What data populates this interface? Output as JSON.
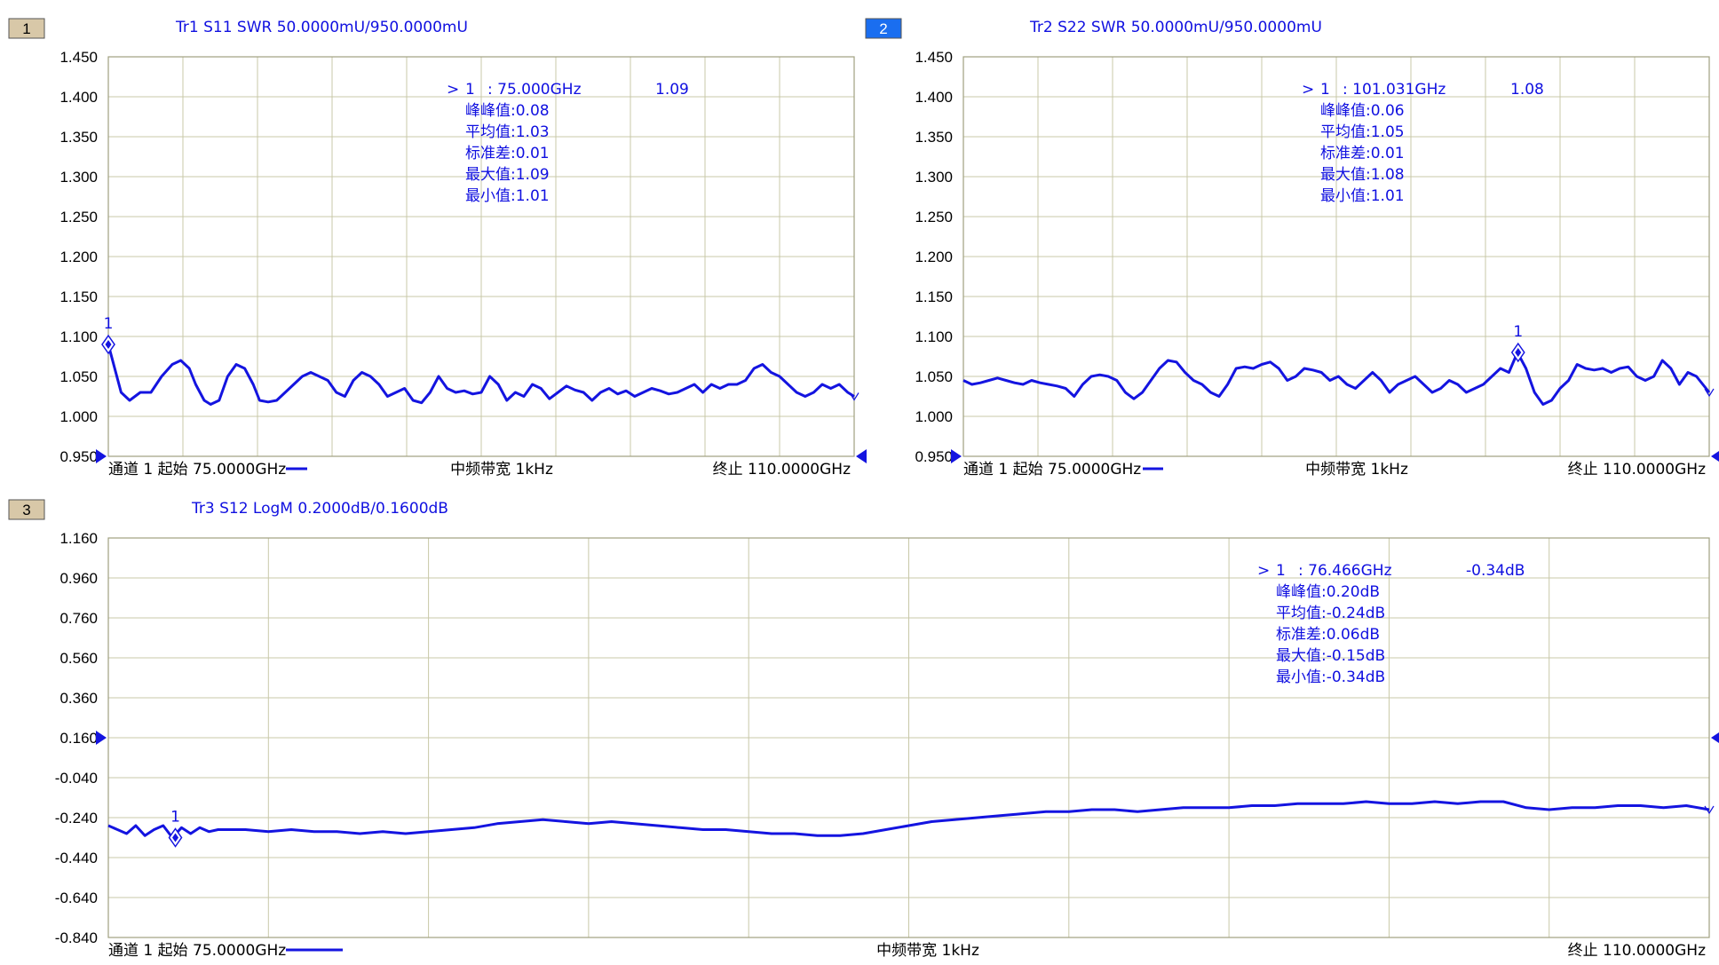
{
  "colors": {
    "trace": "#1414e0",
    "grid": "#c8c8a8",
    "frame": "#a0a080",
    "badge_inactive": "#d8c8a8",
    "badge_active": "#1a6ef0",
    "annotation": "#1010e0"
  },
  "chart_data": [
    {
      "type": "line",
      "badge": "1",
      "badge_active": false,
      "title": "Tr1 S11 SWR 50.0000mU/950.0000mU",
      "x_range": [
        75.0,
        110.0
      ],
      "x_unit": "GHz",
      "ylim": [
        0.95,
        1.45
      ],
      "yticks": [
        "1.450",
        "1.400",
        "1.350",
        "1.300",
        "1.250",
        "1.200",
        "1.150",
        "1.100",
        "1.050",
        "1.000",
        "0.950"
      ],
      "reference_value": 0.95,
      "grid": true,
      "footer": {
        "left": "通道 1 起始 75.0000GHz",
        "center": "中频带宽 1kHz",
        "right": "终止 110.0000GHz"
      },
      "marker": {
        "label": "1",
        "x": 75.0,
        "y": 1.09
      },
      "stats": [
        {
          "prefix": ">",
          "label": "1",
          "freq": ": 75.000GHz",
          "value": "1.09"
        },
        "峰峰值:0.08",
        "平均值:1.03",
        "标准差:0.01",
        "最大值:1.09",
        "最小值:1.01"
      ],
      "series": [
        {
          "x": [
            75.0,
            75.3,
            75.6,
            76.0,
            76.5,
            77.0,
            77.5,
            78.0,
            78.4,
            78.8,
            79.1,
            79.5,
            79.8,
            80.2,
            80.6,
            81.0,
            81.4,
            81.8,
            82.1,
            82.5,
            82.9,
            83.3,
            83.7,
            84.1,
            84.5,
            84.9,
            85.3,
            85.7,
            86.1,
            86.5,
            86.9,
            87.3,
            87.7,
            88.1,
            88.5,
            88.9,
            89.3,
            89.7,
            90.1,
            90.5,
            90.9,
            91.3,
            91.7,
            92.1,
            92.5,
            92.9,
            93.3,
            93.7,
            94.1,
            94.5,
            94.9,
            95.3,
            95.7,
            96.1,
            96.5,
            96.9,
            97.3,
            97.7,
            98.1,
            98.5,
            98.9,
            99.3,
            99.7,
            100.1,
            100.5,
            100.9,
            101.3,
            101.7,
            102.1,
            102.5,
            102.9,
            103.3,
            103.7,
            104.1,
            104.5,
            104.9,
            105.3,
            105.7,
            106.1,
            106.5,
            106.9,
            107.3,
            107.7,
            108.1,
            108.5,
            108.9,
            109.3,
            109.7,
            110.0
          ],
          "y": [
            1.09,
            1.06,
            1.03,
            1.02,
            1.03,
            1.03,
            1.05,
            1.065,
            1.07,
            1.06,
            1.04,
            1.02,
            1.015,
            1.02,
            1.05,
            1.065,
            1.06,
            1.04,
            1.02,
            1.018,
            1.02,
            1.03,
            1.04,
            1.05,
            1.055,
            1.05,
            1.045,
            1.03,
            1.025,
            1.045,
            1.055,
            1.05,
            1.04,
            1.025,
            1.03,
            1.035,
            1.02,
            1.017,
            1.03,
            1.05,
            1.035,
            1.03,
            1.032,
            1.028,
            1.03,
            1.05,
            1.04,
            1.02,
            1.03,
            1.025,
            1.04,
            1.035,
            1.022,
            1.03,
            1.038,
            1.033,
            1.03,
            1.02,
            1.03,
            1.035,
            1.028,
            1.032,
            1.025,
            1.03,
            1.035,
            1.032,
            1.028,
            1.03,
            1.035,
            1.04,
            1.03,
            1.04,
            1.035,
            1.04,
            1.04,
            1.045,
            1.06,
            1.065,
            1.055,
            1.05,
            1.04,
            1.03,
            1.025,
            1.03,
            1.04,
            1.035,
            1.04,
            1.03,
            1.025
          ]
        }
      ]
    },
    {
      "type": "line",
      "badge": "2",
      "badge_active": true,
      "title": "Tr2 S22 SWR 50.0000mU/950.0000mU",
      "x_range": [
        75.0,
        110.0
      ],
      "x_unit": "GHz",
      "ylim": [
        0.95,
        1.45
      ],
      "yticks": [
        "1.450",
        "1.400",
        "1.350",
        "1.300",
        "1.250",
        "1.200",
        "1.150",
        "1.100",
        "1.050",
        "1.000",
        "0.950"
      ],
      "reference_value": 0.95,
      "grid": true,
      "footer": {
        "left": "通道 1 起始 75.0000GHz",
        "center": "中频带宽 1kHz",
        "right": "终止 110.0000GHz"
      },
      "marker": {
        "label": "1",
        "x": 101.031,
        "y": 1.08
      },
      "stats": [
        {
          "prefix": ">",
          "label": "1",
          "freq": ": 101.031GHz",
          "value": "1.08"
        },
        "峰峰值:0.06",
        "平均值:1.05",
        "标准差:0.01",
        "最大值:1.08",
        "最小值:1.01"
      ],
      "series": [
        {
          "x": [
            75.0,
            75.4,
            75.8,
            76.2,
            76.6,
            77.0,
            77.4,
            77.8,
            78.2,
            78.6,
            79.0,
            79.4,
            79.8,
            80.2,
            80.6,
            81.0,
            81.4,
            81.8,
            82.2,
            82.6,
            83.0,
            83.4,
            83.8,
            84.2,
            84.6,
            85.0,
            85.4,
            85.8,
            86.2,
            86.6,
            87.0,
            87.4,
            87.8,
            88.2,
            88.6,
            89.0,
            89.4,
            89.8,
            90.2,
            90.6,
            91.0,
            91.4,
            91.8,
            92.2,
            92.6,
            93.0,
            93.4,
            93.8,
            94.2,
            94.6,
            95.0,
            95.4,
            95.8,
            96.2,
            96.6,
            97.0,
            97.4,
            97.8,
            98.2,
            98.6,
            99.0,
            99.4,
            99.8,
            100.2,
            100.6,
            101.0,
            101.4,
            101.8,
            102.2,
            102.6,
            103.0,
            103.4,
            103.8,
            104.2,
            104.6,
            105.0,
            105.4,
            105.8,
            106.2,
            106.6,
            107.0,
            107.4,
            107.8,
            108.2,
            108.6,
            109.0,
            109.4,
            109.7,
            110.0
          ],
          "y": [
            1.045,
            1.04,
            1.042,
            1.045,
            1.048,
            1.045,
            1.042,
            1.04,
            1.045,
            1.042,
            1.04,
            1.038,
            1.035,
            1.025,
            1.04,
            1.05,
            1.052,
            1.05,
            1.045,
            1.03,
            1.022,
            1.03,
            1.045,
            1.06,
            1.07,
            1.068,
            1.055,
            1.045,
            1.04,
            1.03,
            1.025,
            1.04,
            1.06,
            1.062,
            1.06,
            1.065,
            1.068,
            1.06,
            1.045,
            1.05,
            1.06,
            1.058,
            1.055,
            1.045,
            1.05,
            1.04,
            1.035,
            1.045,
            1.055,
            1.045,
            1.03,
            1.04,
            1.045,
            1.05,
            1.04,
            1.03,
            1.035,
            1.045,
            1.04,
            1.03,
            1.035,
            1.04,
            1.05,
            1.06,
            1.055,
            1.08,
            1.06,
            1.03,
            1.015,
            1.02,
            1.035,
            1.045,
            1.065,
            1.06,
            1.058,
            1.06,
            1.055,
            1.06,
            1.062,
            1.05,
            1.045,
            1.05,
            1.07,
            1.06,
            1.04,
            1.055,
            1.05,
            1.04,
            1.03
          ]
        }
      ]
    },
    {
      "type": "line",
      "badge": "3",
      "badge_active": false,
      "title": "Tr3 S12 LogM 0.2000dB/0.1600dB",
      "x_range": [
        75.0,
        110.0
      ],
      "x_unit": "GHz",
      "ylim": [
        -0.84,
        1.16
      ],
      "yticks": [
        "1.160",
        "0.960",
        "0.760",
        "0.560",
        "0.360",
        "0.160",
        "-0.040",
        "-0.240",
        "-0.440",
        "-0.640",
        "-0.840"
      ],
      "reference_value": 0.16,
      "grid": true,
      "footer": {
        "left": "通道 1 起始 75.0000GHz",
        "center": "中频带宽 1kHz",
        "right": "终止 110.0000GHz"
      },
      "marker": {
        "label": "1",
        "x": 76.466,
        "y": -0.34
      },
      "stats": [
        {
          "prefix": ">",
          "label": "1",
          "freq": ": 76.466GHz",
          "value": "-0.34dB"
        },
        "峰峰值:0.20dB",
        "平均值:-0.24dB",
        "标准差:0.06dB",
        "最大值:-0.15dB",
        "最小值:-0.34dB"
      ],
      "series": [
        {
          "x": [
            75.0,
            75.2,
            75.4,
            75.6,
            75.8,
            76.0,
            76.2,
            76.4,
            76.6,
            76.8,
            77.0,
            77.2,
            77.4,
            77.6,
            78.0,
            78.5,
            79.0,
            79.5,
            80.0,
            80.5,
            81.0,
            81.5,
            82.0,
            82.5,
            83.0,
            83.5,
            84.0,
            84.5,
            85.0,
            85.5,
            86.0,
            86.5,
            87.0,
            87.5,
            88.0,
            88.5,
            89.0,
            89.5,
            90.0,
            90.5,
            91.0,
            91.5,
            92.0,
            92.5,
            93.0,
            93.5,
            94.0,
            94.5,
            95.0,
            95.5,
            96.0,
            96.5,
            97.0,
            97.5,
            98.0,
            98.5,
            99.0,
            99.5,
            100.0,
            100.5,
            101.0,
            101.5,
            102.0,
            102.5,
            103.0,
            103.5,
            104.0,
            104.5,
            105.0,
            105.5,
            106.0,
            106.5,
            107.0,
            107.5,
            108.0,
            108.5,
            109.0,
            109.5,
            110.0
          ],
          "y": [
            -0.28,
            -0.3,
            -0.32,
            -0.28,
            -0.33,
            -0.3,
            -0.28,
            -0.34,
            -0.29,
            -0.32,
            -0.29,
            -0.31,
            -0.3,
            -0.3,
            -0.3,
            -0.31,
            -0.3,
            -0.31,
            -0.31,
            -0.32,
            -0.31,
            -0.32,
            -0.31,
            -0.3,
            -0.29,
            -0.27,
            -0.26,
            -0.25,
            -0.26,
            -0.27,
            -0.26,
            -0.27,
            -0.28,
            -0.29,
            -0.3,
            -0.3,
            -0.31,
            -0.32,
            -0.32,
            -0.33,
            -0.33,
            -0.32,
            -0.3,
            -0.28,
            -0.26,
            -0.25,
            -0.24,
            -0.23,
            -0.22,
            -0.21,
            -0.21,
            -0.2,
            -0.2,
            -0.21,
            -0.2,
            -0.19,
            -0.19,
            -0.19,
            -0.18,
            -0.18,
            -0.17,
            -0.17,
            -0.17,
            -0.16,
            -0.17,
            -0.17,
            -0.16,
            -0.17,
            -0.16,
            -0.16,
            -0.19,
            -0.2,
            -0.19,
            -0.19,
            -0.18,
            -0.18,
            -0.19,
            -0.18,
            -0.2
          ]
        }
      ]
    }
  ]
}
